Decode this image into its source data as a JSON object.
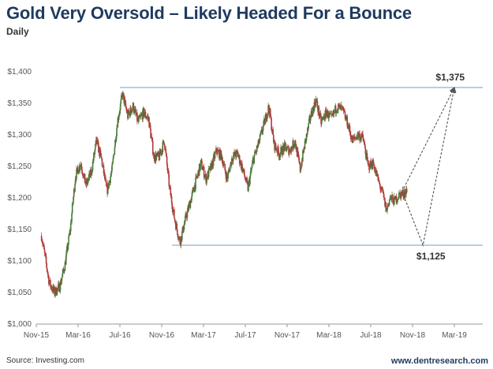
{
  "header": {
    "title": "Gold Very Oversold – Likely Headed For a Bounce",
    "subtitle": "Daily"
  },
  "footer": {
    "source": "Source: Investing.com",
    "site": "www.dentresearch.com"
  },
  "colors": {
    "title": "#1f3a5f",
    "up_candle": "#4a7a3a",
    "down_candle": "#b23a3a",
    "level_line": "#8fb0cc",
    "projection": "#555555"
  },
  "chart_data": {
    "type": "line",
    "title": "Gold Very Oversold – Likely Headed For a Bounce",
    "subtitle": "Daily",
    "xlabel": "",
    "ylabel": "",
    "ylim": [
      1000,
      1400
    ],
    "y_ticks": [
      "$1,000",
      "$1,050",
      "$1,100",
      "$1,150",
      "$1,200",
      "$1,250",
      "$1,300",
      "$1,350",
      "$1,400"
    ],
    "x_ticks": [
      "Nov-15",
      "Mar-16",
      "Jul-16",
      "Nov-16",
      "Mar-17",
      "Jul-17",
      "Nov-17",
      "Mar-18",
      "Jul-18",
      "Nov-18",
      "Mar-19"
    ],
    "grid": false,
    "series": [
      {
        "values": [
          [
            "Nov-15",
            1140
          ],
          [
            "Dec-15",
            1065
          ],
          [
            "Dec-15",
            1050
          ],
          [
            "Jan-16",
            1060
          ],
          [
            "Jan-16",
            1095
          ],
          [
            "Feb-16",
            1150
          ],
          [
            "Feb-16",
            1235
          ],
          [
            "Mar-16",
            1255
          ],
          [
            "Mar-16",
            1220
          ],
          [
            "Apr-16",
            1240
          ],
          [
            "Apr-16",
            1290
          ],
          [
            "May-16",
            1260
          ],
          [
            "May-16",
            1210
          ],
          [
            "Jun-16",
            1245
          ],
          [
            "Jun-16",
            1320
          ],
          [
            "Jul-16",
            1365
          ],
          [
            "Jul-16",
            1330
          ],
          [
            "Aug-16",
            1345
          ],
          [
            "Aug-16",
            1320
          ],
          [
            "Sep-16",
            1335
          ],
          [
            "Sep-16",
            1325
          ],
          [
            "Oct-16",
            1265
          ],
          [
            "Oct-16",
            1265
          ],
          [
            "Nov-16",
            1290
          ],
          [
            "Nov-16",
            1215
          ],
          [
            "Dec-16",
            1165
          ],
          [
            "Dec-16",
            1130
          ],
          [
            "Jan-17",
            1165
          ],
          [
            "Jan-17",
            1195
          ],
          [
            "Feb-17",
            1225
          ],
          [
            "Feb-17",
            1255
          ],
          [
            "Mar-17",
            1230
          ],
          [
            "Mar-17",
            1250
          ],
          [
            "Apr-17",
            1275
          ],
          [
            "Apr-17",
            1265
          ],
          [
            "May-17",
            1230
          ],
          [
            "May-17",
            1265
          ],
          [
            "Jun-17",
            1270
          ],
          [
            "Jun-17",
            1245
          ],
          [
            "Jul-17",
            1215
          ],
          [
            "Jul-17",
            1260
          ],
          [
            "Aug-17",
            1285
          ],
          [
            "Aug-17",
            1315
          ],
          [
            "Sep-17",
            1345
          ],
          [
            "Sep-17",
            1285
          ],
          [
            "Oct-17",
            1270
          ],
          [
            "Oct-17",
            1280
          ],
          [
            "Nov-17",
            1275
          ],
          [
            "Nov-17",
            1290
          ],
          [
            "Dec-17",
            1245
          ],
          [
            "Dec-17",
            1290
          ],
          [
            "Jan-18",
            1330
          ],
          [
            "Jan-18",
            1355
          ],
          [
            "Feb-18",
            1320
          ],
          [
            "Feb-18",
            1335
          ],
          [
            "Mar-18",
            1325
          ],
          [
            "Mar-18",
            1345
          ],
          [
            "Apr-18",
            1340
          ],
          [
            "Apr-18",
            1320
          ],
          [
            "May-18",
            1290
          ],
          [
            "May-18",
            1300
          ],
          [
            "Jun-18",
            1295
          ],
          [
            "Jun-18",
            1250
          ],
          [
            "Jul-18",
            1255
          ],
          [
            "Jul-18",
            1225
          ],
          [
            "Aug-18",
            1205
          ],
          [
            "Aug-18",
            1180
          ],
          [
            "Aug-18",
            1200
          ],
          [
            "Sep-18",
            1195
          ],
          [
            "Sep-18",
            1205
          ],
          [
            "Oct-18",
            1210
          ]
        ]
      }
    ],
    "levels": [
      {
        "value": 1375,
        "from": "Jul-16",
        "to": "Mar-19"
      },
      {
        "value": 1125,
        "from": "Dec-16",
        "to": "Mar-19"
      }
    ],
    "projections": [
      {
        "points": [
          [
            "Oct-18",
            1210
          ],
          [
            "Mar-19",
            1375
          ]
        ]
      },
      {
        "points": [
          [
            "Oct-18",
            1210
          ],
          [
            "Dec-18",
            1125
          ],
          [
            "Mar-19",
            1375
          ]
        ]
      }
    ],
    "annotations": [
      {
        "text": "$1,375",
        "value": 1375,
        "at": "Feb-19"
      },
      {
        "text": "$1,125",
        "value": 1125,
        "at": "Dec-18"
      }
    ]
  }
}
